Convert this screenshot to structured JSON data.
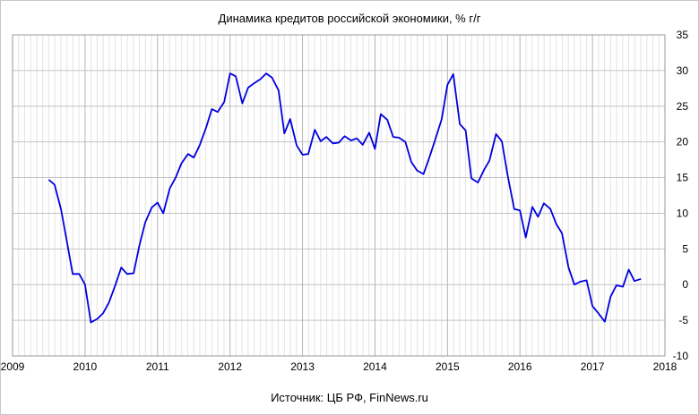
{
  "chart_data": {
    "type": "line",
    "title": "Динамика кредитов российской экономики, % г/г",
    "source": "Источник: ЦБ РФ, FinNews.ru",
    "xlim": [
      2009,
      2018
    ],
    "ylim": [
      -10,
      35
    ],
    "x_ticks": [
      "2009",
      "2010",
      "2011",
      "2012",
      "2013",
      "2014",
      "2015",
      "2016",
      "2017",
      "2018"
    ],
    "y_ticks": [
      "35",
      "30",
      "25",
      "20",
      "15",
      "10",
      "5",
      "0",
      "-5",
      "-10"
    ],
    "grid": true,
    "line_color": "#0000dd",
    "series": [
      {
        "x": [
          2009.5,
          2009.58,
          2009.67,
          2009.75,
          2009.83,
          2009.92,
          2010.0,
          2010.08,
          2010.17,
          2010.25,
          2010.33,
          2010.42,
          2010.5,
          2010.58,
          2010.67,
          2010.75,
          2010.83,
          2010.92,
          2011.0,
          2011.08,
          2011.17,
          2011.25,
          2011.33,
          2011.42,
          2011.5,
          2011.58,
          2011.67,
          2011.75,
          2011.83,
          2011.92,
          2012.0,
          2012.08,
          2012.17,
          2012.25,
          2012.33,
          2012.42,
          2012.5,
          2012.58,
          2012.67,
          2012.75,
          2012.83,
          2012.92,
          2013.0,
          2013.08,
          2013.17,
          2013.25,
          2013.33,
          2013.42,
          2013.5,
          2013.58,
          2013.67,
          2013.75,
          2013.83,
          2013.92,
          2014.0,
          2014.08,
          2014.17,
          2014.25,
          2014.33,
          2014.42,
          2014.5,
          2014.58,
          2014.67,
          2014.75,
          2014.83,
          2014.92,
          2015.0,
          2015.08,
          2015.17,
          2015.25,
          2015.33,
          2015.42,
          2015.5,
          2015.58,
          2015.67,
          2015.75,
          2015.83,
          2015.92,
          2016.0,
          2016.08,
          2016.17,
          2016.25,
          2016.33,
          2016.42,
          2016.5,
          2016.58,
          2016.67,
          2016.75,
          2016.83,
          2016.92,
          2017.0,
          2017.08,
          2017.17,
          2017.25,
          2017.33,
          2017.42,
          2017.5,
          2017.58,
          2017.67
        ],
        "y": [
          14.7,
          14.0,
          10.5,
          6.0,
          1.5,
          1.5,
          0.0,
          -5.3,
          -4.8,
          -4.0,
          -2.5,
          0.0,
          2.4,
          1.5,
          1.6,
          5.5,
          8.7,
          10.8,
          11.5,
          10.0,
          13.5,
          15.0,
          17.0,
          18.3,
          17.8,
          19.5,
          22.0,
          24.6,
          24.2,
          25.6,
          29.6,
          29.2,
          25.4,
          27.6,
          28.2,
          28.8,
          29.6,
          29.0,
          27.2,
          21.2,
          23.2,
          19.5,
          18.2,
          18.3,
          21.7,
          20.1,
          20.7,
          19.8,
          19.9,
          20.8,
          20.2,
          20.5,
          19.6,
          21.3,
          19.0,
          23.9,
          23.1,
          20.7,
          20.6,
          20.0,
          17.2,
          16.0,
          15.5,
          17.8,
          20.3,
          23.2,
          28.0,
          29.5,
          22.5,
          21.6,
          14.9,
          14.3,
          16.0,
          17.4,
          21.1,
          20.1,
          15.3,
          10.6,
          10.4,
          6.6,
          10.9,
          9.5,
          11.4,
          10.6,
          8.5,
          7.2,
          2.4,
          0.0,
          0.4,
          0.6,
          -3.0,
          -4.0,
          -5.2,
          -1.7,
          -0.1,
          -0.3,
          2.1,
          0.5,
          0.8
        ]
      }
    ]
  }
}
